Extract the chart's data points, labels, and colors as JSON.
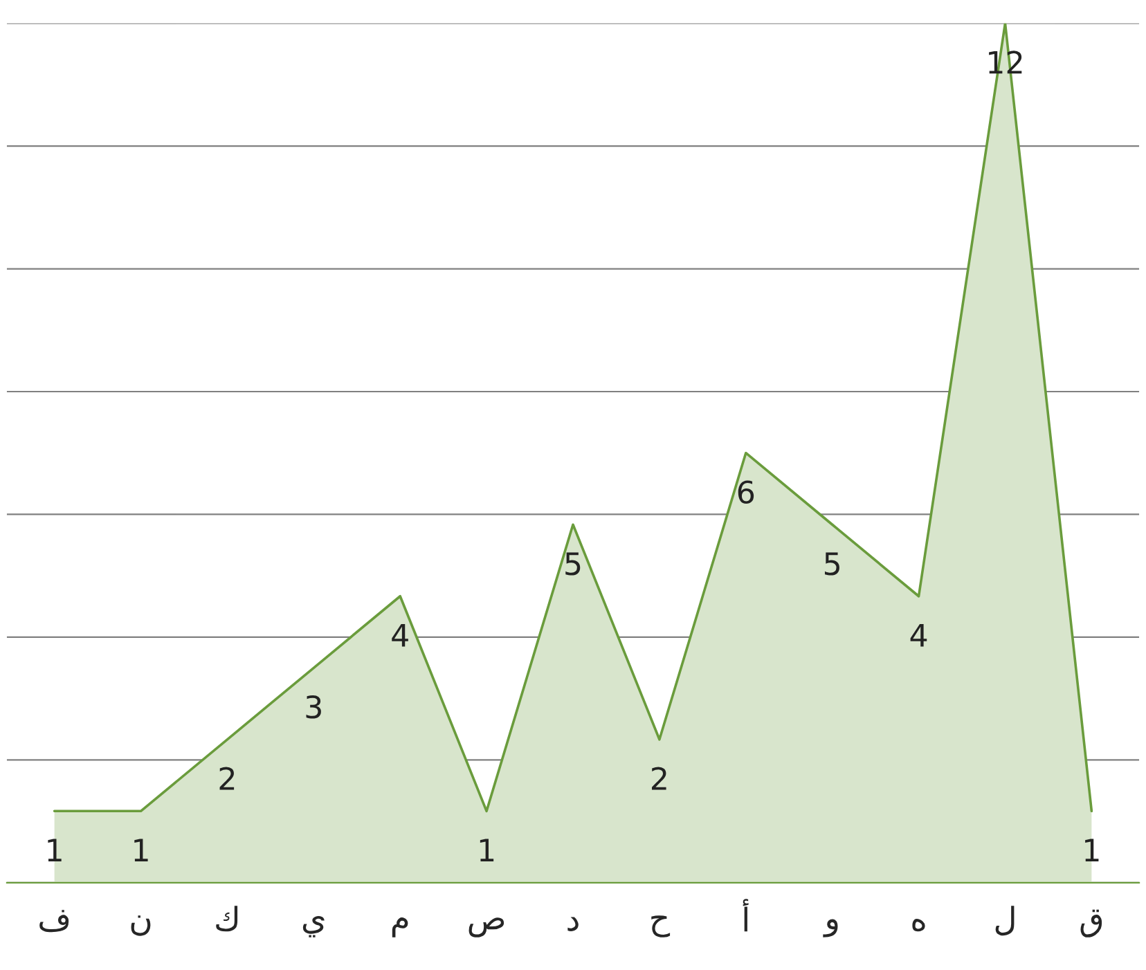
{
  "chart_data": {
    "type": "area",
    "data_labels": true,
    "categories": [
      "ف",
      "ن",
      "ك",
      "ي",
      "م",
      "ص",
      "د",
      "ح",
      "أ",
      "و",
      "ه",
      "ل",
      "ق"
    ],
    "series": [
      {
        "color": "#d8e5cc",
        "values": [
          1,
          1,
          2,
          3,
          4,
          1,
          5,
          2,
          6,
          5,
          4,
          12,
          1
        ]
      }
    ],
    "grid": "y",
    "tick_labels": "x",
    "legend": false
  }
}
